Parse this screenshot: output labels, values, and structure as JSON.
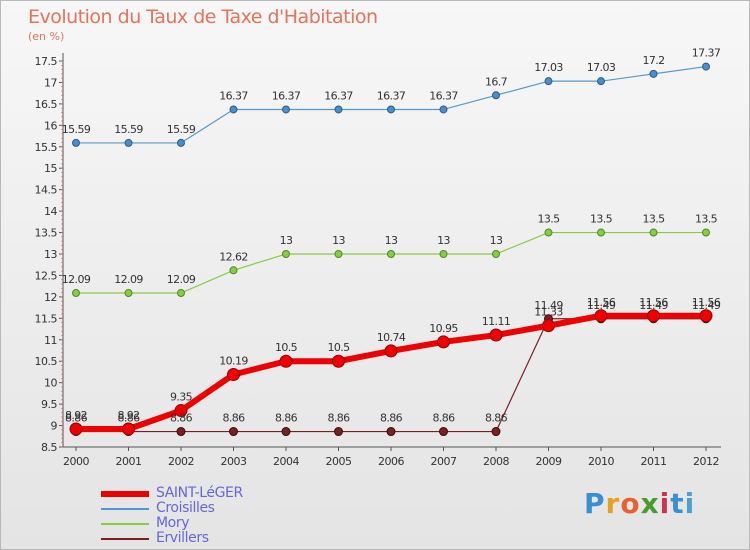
{
  "title": "Evolution du Taux de Taxe d'Habitation",
  "subtitle": "(en %)",
  "logo": {
    "letters": [
      "P",
      "r",
      "o",
      "x",
      "i",
      "t",
      "i"
    ],
    "colors": [
      "#3a8fd0",
      "#e8a020",
      "#e86030",
      "#4a9a30",
      "#d03050",
      "#3a8fd0",
      "#4aa0d0"
    ]
  },
  "chart_data": {
    "type": "line",
    "title": "Evolution du Taux de Taxe d'Habitation",
    "ylabel": "(en %)",
    "xlabel": "",
    "x": [
      "2000",
      "2001",
      "2002",
      "2003",
      "2004",
      "2005",
      "2006",
      "2007",
      "2008",
      "2009",
      "2010",
      "2011",
      "2012"
    ],
    "ylim": [
      8.5,
      17.5
    ],
    "yticks": [
      "8.5",
      "9",
      "9.5",
      "10",
      "10.5",
      "11",
      "11.5",
      "12",
      "12.5",
      "13",
      "13.5",
      "14",
      "14.5",
      "15",
      "15.5",
      "16",
      "16.5",
      "17",
      "17.5"
    ],
    "grid": false,
    "legend_position": "bottom-left",
    "series": [
      {
        "name": "SAINT-LéGER",
        "color": "#ee0000",
        "values": [
          8.92,
          8.92,
          9.35,
          10.19,
          10.5,
          10.5,
          10.74,
          10.95,
          11.11,
          11.33,
          11.56,
          11.56,
          11.56
        ],
        "labels": [
          "8.92",
          "8.92",
          "9.35",
          "10.19",
          "10.5",
          "10.5",
          "10.74",
          "10.95",
          "11.11",
          "11.33",
          "11.56",
          "11.56",
          "11.56"
        ]
      },
      {
        "name": "Croisilles",
        "color": "#5599cc",
        "values": [
          15.59,
          15.59,
          15.59,
          16.37,
          16.37,
          16.37,
          16.37,
          16.37,
          16.7,
          17.03,
          17.03,
          17.2,
          17.37
        ],
        "labels": [
          "15.59",
          "15.59",
          "15.59",
          "16.37",
          "16.37",
          "16.37",
          "16.37",
          "16.37",
          "16.7",
          "17.03",
          "17.03",
          "17.2",
          "17.37"
        ]
      },
      {
        "name": "Mory",
        "color": "#88cc44",
        "values": [
          12.09,
          12.09,
          12.09,
          12.62,
          13,
          13,
          13,
          13,
          13,
          13.5,
          13.5,
          13.5,
          13.5
        ],
        "labels": [
          "12.09",
          "12.09",
          "12.09",
          "12.62",
          "13",
          "13",
          "13",
          "13",
          "13",
          "13.5",
          "13.5",
          "13.5",
          "13.5"
        ]
      },
      {
        "name": "Ervillers",
        "color": "#7a2020",
        "values": [
          8.86,
          8.86,
          8.86,
          8.86,
          8.86,
          8.86,
          8.86,
          8.86,
          8.86,
          11.49,
          11.49,
          11.49,
          11.49
        ],
        "labels": [
          "8.86",
          "8.86",
          "8.86",
          "8.86",
          "8.86",
          "8.86",
          "8.86",
          "8.86",
          "8.86",
          "11.49",
          "11.49",
          "11.49",
          "11.49"
        ]
      }
    ]
  }
}
